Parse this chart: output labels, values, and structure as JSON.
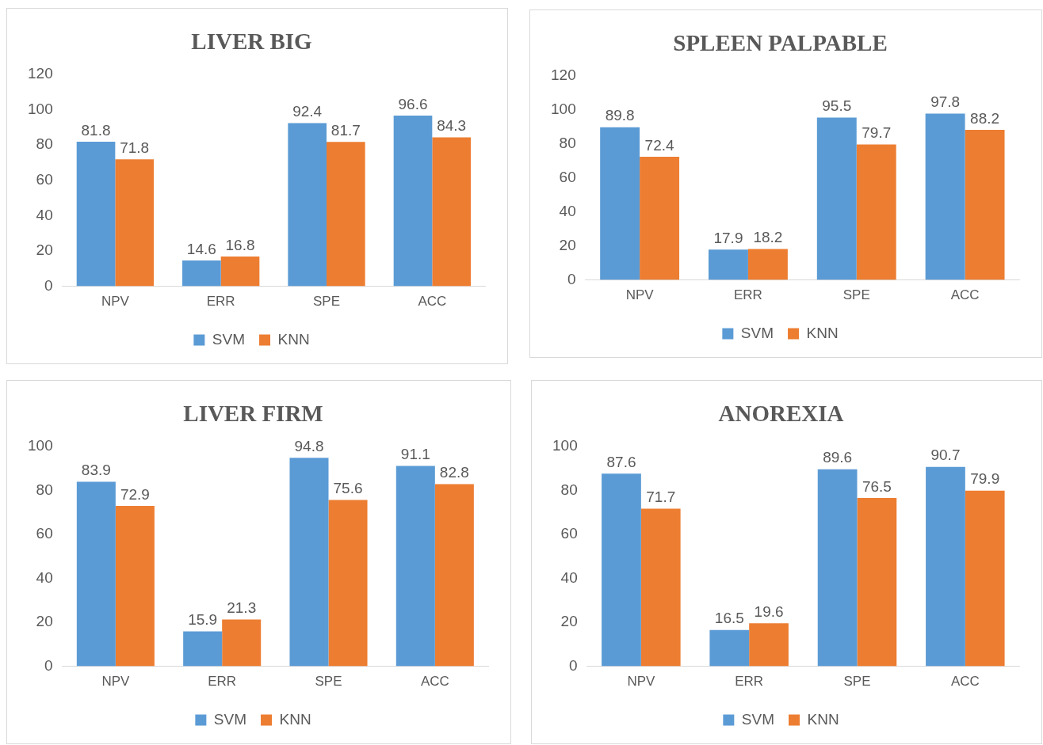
{
  "chart_data": [
    {
      "type": "bar",
      "title": "LIVER BIG",
      "categories": [
        "NPV",
        "ERR",
        "SPE",
        "ACC"
      ],
      "series": [
        {
          "name": "SVM",
          "color": "#5b9bd5",
          "values": [
            81.8,
            14.6,
            92.4,
            96.6
          ]
        },
        {
          "name": "KNN",
          "color": "#ed7d31",
          "values": [
            71.8,
            16.8,
            81.7,
            84.3
          ]
        }
      ],
      "ylim": [
        0,
        120
      ],
      "yticks": [
        0,
        20,
        40,
        60,
        80,
        100,
        120
      ],
      "grid": false,
      "legend": "bottom",
      "data_labels": true
    },
    {
      "type": "bar",
      "title": "SPLEEN PALPABLE",
      "categories": [
        "NPV",
        "ERR",
        "SPE",
        "ACC"
      ],
      "series": [
        {
          "name": "SVM",
          "color": "#5b9bd5",
          "values": [
            89.8,
            17.9,
            95.5,
            97.8
          ]
        },
        {
          "name": "KNN",
          "color": "#ed7d31",
          "values": [
            72.4,
            18.2,
            79.7,
            88.2
          ]
        }
      ],
      "ylim": [
        0,
        120
      ],
      "yticks": [
        0,
        20,
        40,
        60,
        80,
        100,
        120
      ],
      "grid": false,
      "legend": "bottom",
      "data_labels": true
    },
    {
      "type": "bar",
      "title": "LIVER FIRM",
      "categories": [
        "NPV",
        "ERR",
        "SPE",
        "ACC"
      ],
      "series": [
        {
          "name": "SVM",
          "color": "#5b9bd5",
          "values": [
            83.9,
            15.9,
            94.8,
            91.1
          ]
        },
        {
          "name": "KNN",
          "color": "#ed7d31",
          "values": [
            72.9,
            21.3,
            75.6,
            82.8
          ]
        }
      ],
      "ylim": [
        0,
        100
      ],
      "yticks": [
        0,
        20,
        40,
        60,
        80,
        100
      ],
      "grid": false,
      "legend": "bottom",
      "data_labels": true
    },
    {
      "type": "bar",
      "title": "ANOREXIA",
      "categories": [
        "NPV",
        "ERR",
        "SPE",
        "ACC"
      ],
      "series": [
        {
          "name": "SVM",
          "color": "#5b9bd5",
          "values": [
            87.6,
            16.5,
            89.6,
            90.7
          ]
        },
        {
          "name": "KNN",
          "color": "#ed7d31",
          "values": [
            71.7,
            19.6,
            76.5,
            79.9
          ]
        }
      ],
      "ylim": [
        0,
        100
      ],
      "yticks": [
        0,
        20,
        40,
        60,
        80,
        100
      ],
      "grid": false,
      "legend": "bottom",
      "data_labels": true
    }
  ]
}
